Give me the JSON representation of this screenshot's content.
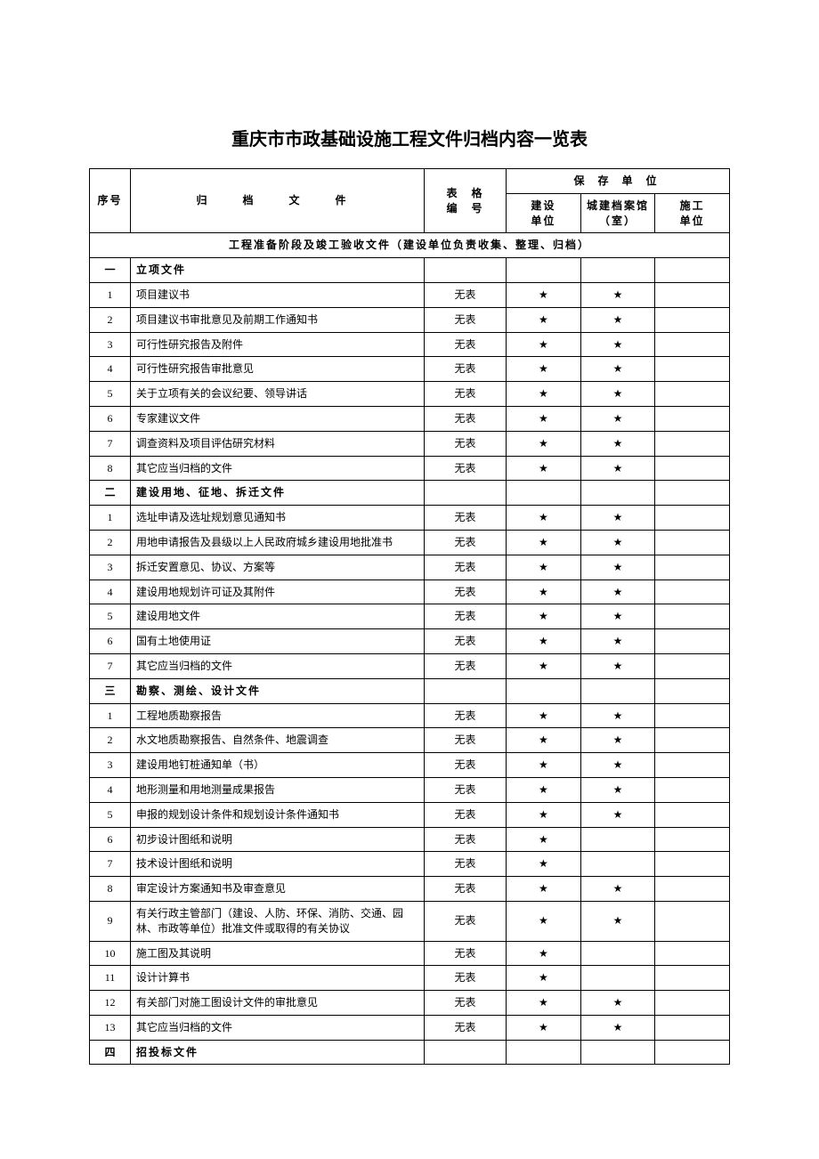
{
  "title": "重庆市市政基础设施工程文件归档内容一览表",
  "title_fontsize": 20,
  "headers": {
    "seq": "序号",
    "doc": "归　档　文　件",
    "form_line1": "表　格",
    "form_line2": "编　号",
    "storage": "保 存 单 位",
    "jianshe_line1": "建设",
    "jianshe_line2": "单位",
    "chengjian_line1": "城建档案馆",
    "chengjian_line2": "（室）",
    "shigong_line1": "施工",
    "shigong_line2": "单位"
  },
  "section_title": "工程准备阶段及竣工验收文件（建设单位负责收集、整理、归档）",
  "star": "★",
  "no_form": "无表",
  "groups": [
    {
      "seq": "一",
      "heading": "立项文件",
      "rows": [
        {
          "seq": "1",
          "doc": "项目建议书",
          "form": "无表",
          "j": true,
          "c": true,
          "s": false
        },
        {
          "seq": "2",
          "doc": "项目建议书审批意见及前期工作通知书",
          "form": "无表",
          "j": true,
          "c": true,
          "s": false
        },
        {
          "seq": "3",
          "doc": "可行性研究报告及附件",
          "form": "无表",
          "j": true,
          "c": true,
          "s": false
        },
        {
          "seq": "4",
          "doc": "可行性研究报告审批意见",
          "form": "无表",
          "j": true,
          "c": true,
          "s": false
        },
        {
          "seq": "5",
          "doc": "关于立项有关的会议纪要、领导讲话",
          "form": "无表",
          "j": true,
          "c": true,
          "s": false
        },
        {
          "seq": "6",
          "doc": "专家建议文件",
          "form": "无表",
          "j": true,
          "c": true,
          "s": false
        },
        {
          "seq": "7",
          "doc": "调查资料及项目评估研究材料",
          "form": "无表",
          "j": true,
          "c": true,
          "s": false
        },
        {
          "seq": "8",
          "doc": "其它应当归档的文件",
          "form": "无表",
          "j": true,
          "c": true,
          "s": false
        }
      ]
    },
    {
      "seq": "二",
      "heading": "建设用地、征地、拆迁文件",
      "rows": [
        {
          "seq": "1",
          "doc": "选址申请及选址规划意见通知书",
          "form": "无表",
          "j": true,
          "c": true,
          "s": false
        },
        {
          "seq": "2",
          "doc": "用地申请报告及县级以上人民政府城乡建设用地批准书",
          "form": "无表",
          "j": true,
          "c": true,
          "s": false
        },
        {
          "seq": "3",
          "doc": "拆迁安置意见、协议、方案等",
          "form": "无表",
          "j": true,
          "c": true,
          "s": false
        },
        {
          "seq": "4",
          "doc": "建设用地规划许可证及其附件",
          "form": "无表",
          "j": true,
          "c": true,
          "s": false
        },
        {
          "seq": "5",
          "doc": "建设用地文件",
          "form": "无表",
          "j": true,
          "c": true,
          "s": false
        },
        {
          "seq": "6",
          "doc": "国有土地使用证",
          "form": "无表",
          "j": true,
          "c": true,
          "s": false
        },
        {
          "seq": "7",
          "doc": "其它应当归档的文件",
          "form": "无表",
          "j": true,
          "c": true,
          "s": false
        }
      ]
    },
    {
      "seq": "三",
      "heading": "勘察、测绘、设计文件",
      "rows": [
        {
          "seq": "1",
          "doc": "工程地质勘察报告",
          "form": "无表",
          "j": true,
          "c": true,
          "s": false
        },
        {
          "seq": "2",
          "doc": "水文地质勘察报告、自然条件、地震调查",
          "form": "无表",
          "j": true,
          "c": true,
          "s": false
        },
        {
          "seq": "3",
          "doc": "建设用地钉桩通知单（书）",
          "form": "无表",
          "j": true,
          "c": true,
          "s": false
        },
        {
          "seq": "4",
          "doc": "地形测量和用地测量成果报告",
          "form": "无表",
          "j": true,
          "c": true,
          "s": false
        },
        {
          "seq": "5",
          "doc": "申报的规划设计条件和规划设计条件通知书",
          "form": "无表",
          "j": true,
          "c": true,
          "s": false
        },
        {
          "seq": "6",
          "doc": "初步设计图纸和说明",
          "form": "无表",
          "j": true,
          "c": false,
          "s": false
        },
        {
          "seq": "7",
          "doc": "技术设计图纸和说明",
          "form": "无表",
          "j": true,
          "c": false,
          "s": false
        },
        {
          "seq": "8",
          "doc": "审定设计方案通知书及审查意见",
          "form": "无表",
          "j": true,
          "c": true,
          "s": false
        },
        {
          "seq": "9",
          "doc": "有关行政主管部门（建设、人防、环保、消防、交通、园林、市政等单位）批准文件或取得的有关协议",
          "form": "无表",
          "j": true,
          "c": true,
          "s": false
        },
        {
          "seq": "10",
          "doc": "施工图及其说明",
          "form": "无表",
          "j": true,
          "c": false,
          "s": false
        },
        {
          "seq": "11",
          "doc": "设计计算书",
          "form": "无表",
          "j": true,
          "c": false,
          "s": false
        },
        {
          "seq": "12",
          "doc": "有关部门对施工图设计文件的审批意见",
          "form": "无表",
          "j": true,
          "c": true,
          "s": false
        },
        {
          "seq": "13",
          "doc": "其它应当归档的文件",
          "form": "无表",
          "j": true,
          "c": true,
          "s": false
        }
      ]
    },
    {
      "seq": "四",
      "heading": "招投标文件",
      "rows": []
    }
  ],
  "colors": {
    "border": "#000000",
    "background": "#ffffff",
    "text": "#000000"
  }
}
